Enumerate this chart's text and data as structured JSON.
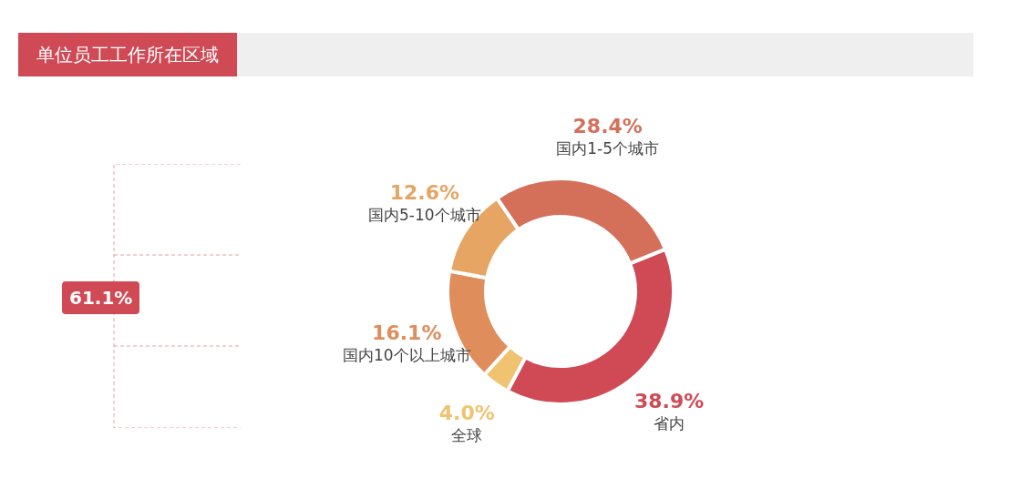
{
  "chart_data": {
    "type": "donut",
    "title": "单位员工工作所在区域",
    "categories": [
      "省内",
      "全球",
      "国内10个以上城市",
      "国内5-10个城市",
      "国内1-5个城市"
    ],
    "values": [
      38.9,
      4.0,
      16.1,
      12.6,
      28.4
    ],
    "colors": [
      "#cf4a55",
      "#efc36f",
      "#e08d5c",
      "#e6a562",
      "#d4705a"
    ],
    "value_labels": [
      "38.9%",
      "4.0%",
      "16.1%",
      "12.6%",
      "28.4%"
    ],
    "annotations": [
      "61.1%"
    ],
    "legend": false
  }
}
